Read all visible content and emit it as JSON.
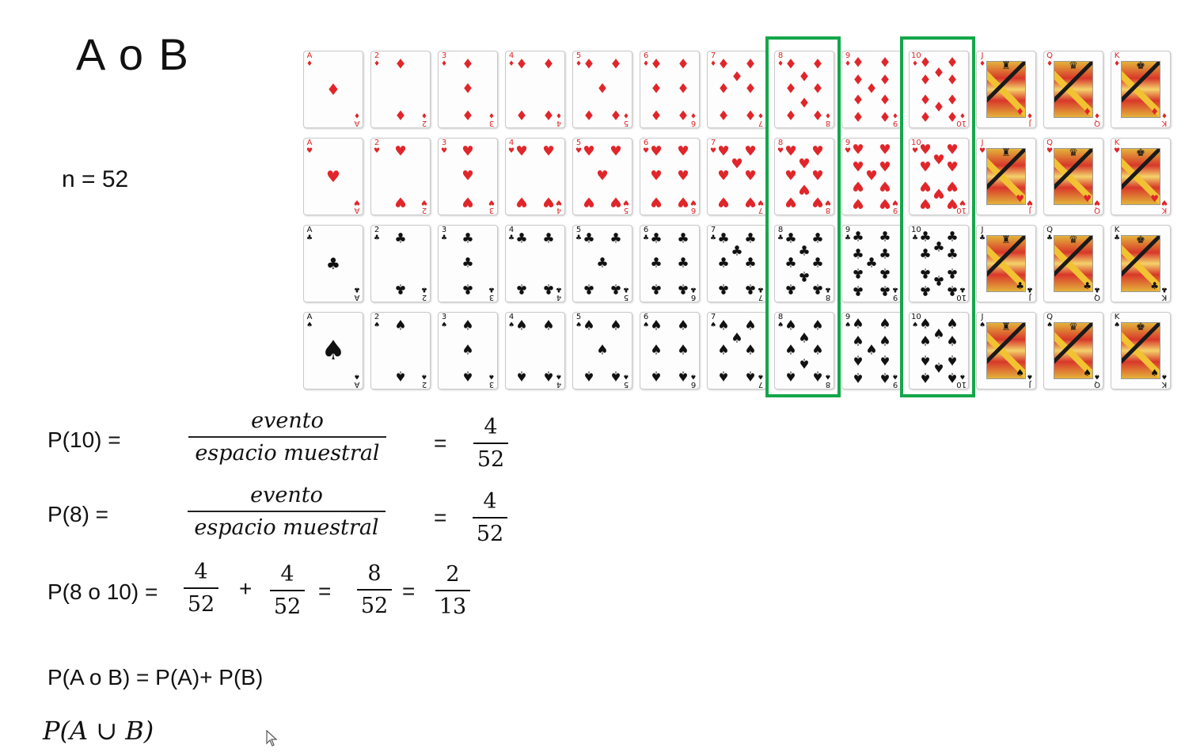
{
  "title": "A o B",
  "n_label": "n = 52",
  "deck": {
    "ranks": [
      "A",
      "2",
      "3",
      "4",
      "5",
      "6",
      "7",
      "8",
      "9",
      "10",
      "J",
      "Q",
      "K"
    ],
    "rows": [
      {
        "suit": "diamonds",
        "symbol": "♦",
        "color": "#e0262a"
      },
      {
        "suit": "hearts",
        "symbol": "♥",
        "color": "#e0262a"
      },
      {
        "suit": "clubs",
        "symbol": "♣",
        "color": "#111111"
      },
      {
        "suit": "spades",
        "symbol": "♠",
        "color": "#111111"
      }
    ],
    "highlighted_ranks": [
      "8",
      "10"
    ],
    "highlight_color": "#14a74a"
  },
  "formulas": {
    "p10": {
      "lhs": "P(10) =",
      "numerator": "evento",
      "denominator": "espacio muestral",
      "eq": "=",
      "result_num": "4",
      "result_den": "52"
    },
    "p8": {
      "lhs": "P(8) =",
      "numerator": "evento",
      "denominator": "espacio muestral",
      "eq": "=",
      "result_num": "4",
      "result_den": "52"
    },
    "p8o10": {
      "lhs": "P(8 o 10) =",
      "f1_num": "4",
      "f1_den": "52",
      "plus": "+",
      "f2_num": "4",
      "f2_den": "52",
      "eq1": "=",
      "f3_num": "8",
      "f3_den": "52",
      "eq2": "=",
      "f4_num": "2",
      "f4_den": "13"
    },
    "rule": "P(A o B) =  P(A)+ P(B)",
    "union": "P(A ∪ B)"
  }
}
